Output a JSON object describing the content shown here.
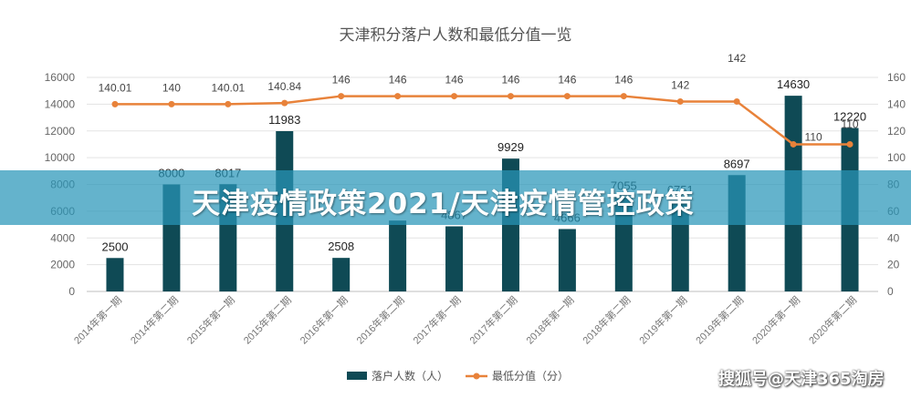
{
  "chart_data": {
    "type": "bar",
    "title": "天津积分落户人数和最低分值一览",
    "categories": [
      "2014年第一期",
      "2014年第二期",
      "2015年第一期",
      "2015年第二期",
      "2016年第一期",
      "2016年第二期",
      "2017年第一期",
      "2017年第二期",
      "2018年第一期",
      "2018年第二期",
      "2019年第一期",
      "2019年第二期",
      "2020年第一期",
      "2020年第二期"
    ],
    "series": [
      {
        "name": "落户人数（人）",
        "type": "bar",
        "axis": "left",
        "color": "#0f4a55",
        "values": [
          2500,
          8000,
          8017,
          11983,
          2508,
          5300,
          4867,
          9929,
          4666,
          7055,
          6751,
          8697,
          14630,
          12220
        ],
        "labels": [
          "2500",
          "8000",
          "8017",
          "11983",
          "2508",
          "",
          "4867",
          "9929",
          "4666",
          "7055",
          "6751",
          "8697",
          "14630",
          "12220"
        ]
      },
      {
        "name": "最低分值（分）",
        "type": "line",
        "axis": "right",
        "color": "#e8823a",
        "values": [
          140.01,
          140,
          140.01,
          140.84,
          146,
          146,
          146,
          146,
          146,
          146,
          142,
          142,
          110,
          110
        ],
        "labels": [
          "140.01",
          "140",
          "140.01",
          "140.84",
          "146",
          "146",
          "146",
          "146",
          "146",
          "146",
          "142",
          "142",
          "110",
          "110"
        ]
      }
    ],
    "y_left": {
      "min": 0,
      "max": 16000,
      "ticks": [
        "0",
        "2000",
        "4000",
        "6000",
        "8000",
        "10000",
        "12000",
        "14000",
        "16000"
      ]
    },
    "y_right": {
      "min": 0,
      "max": 160,
      "ticks": [
        "0",
        "20",
        "40",
        "60",
        "80",
        "100",
        "120",
        "140",
        "160"
      ]
    },
    "grid": true,
    "legend": "bottom"
  },
  "overlay": {
    "banner_text": "天津疫情政策2021/天津疫情管控政策",
    "watermark": "搜狐号@天津365淘房"
  }
}
